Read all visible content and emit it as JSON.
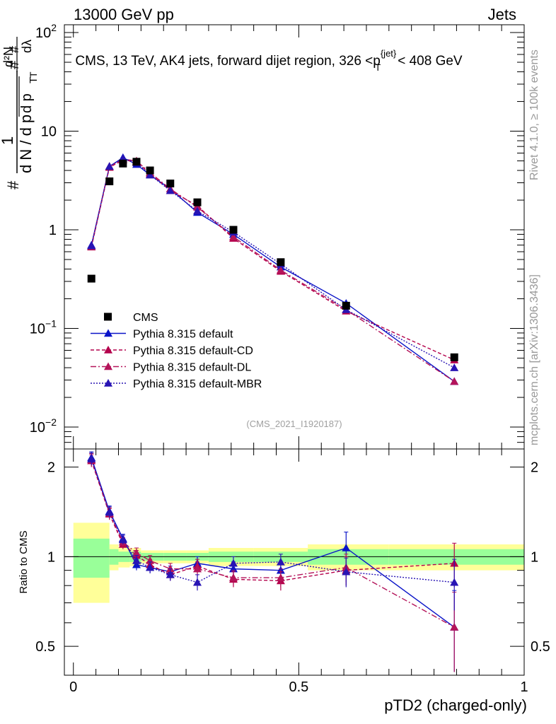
{
  "header": {
    "left": "13000 GeV pp",
    "right": "Jets"
  },
  "side_text": {
    "rivet": "Rivet 4.1.0, ≥ 100k events",
    "mcplots": "mcplots.cern.ch [arXiv:1306.3436]"
  },
  "main": {
    "title": "CMS, 13 TeV, AK4 jets, forward dijet region, 326 <p",
    "title_sup": "{jet}",
    "title_sub": "T",
    "title_end": "< 408 GeV",
    "watermark": "(CMS_2021_I1920187)",
    "ylabel": {
      "hash1": "#",
      "one": "1",
      "dN": "d N / d p",
      "T1": "T",
      "hash2": "#",
      "dp": "d p",
      "T2": "T",
      "hash3": "#",
      "d2N": "d²N",
      "dl": "dλ"
    },
    "yticks": [
      {
        "base": "10",
        "exp": "2",
        "value": 100
      },
      {
        "base": "10",
        "exp": "",
        "value": 10
      },
      {
        "base": "1",
        "exp": "",
        "value": 1
      },
      {
        "base": "10",
        "exp": "−1",
        "value": 0.1
      },
      {
        "base": "10",
        "exp": "−2",
        "value": 0.01
      }
    ]
  },
  "ratio": {
    "ylabel": "Ratio to CMS",
    "yticks": [
      "2",
      "1",
      "0.5"
    ],
    "xticks": [
      "0",
      "0.5",
      "1"
    ],
    "xlabel": "pTD2 (charged-only)"
  },
  "legend": [
    {
      "label": "CMS",
      "color": "#000000",
      "marker": "square"
    },
    {
      "label": "Pythia 8.315 default",
      "color": "#0a14c8",
      "marker": "triangle",
      "dash": ""
    },
    {
      "label": "Pythia 8.315 default-CD",
      "color": "#b4004b",
      "marker": "triangle",
      "dash": "5,3"
    },
    {
      "label": "Pythia 8.315 default-DL",
      "color": "#b4145a",
      "marker": "triangle",
      "dash": "8,3,2,3"
    },
    {
      "label": "Pythia 8.315 default-MBR",
      "color": "#2814b4",
      "marker": "triangle",
      "dash": "2,2"
    }
  ],
  "chart_data": {
    "type": "scatter",
    "main_yscale": "log",
    "main_ylim": [
      0.006,
      120
    ],
    "ratio_ylim": [
      0.4,
      2.3
    ],
    "xlim": [
      -0.02,
      1.0
    ],
    "bin_edges": [
      0,
      0.08,
      0.1,
      0.125,
      0.15,
      0.2,
      0.25,
      0.3,
      0.4,
      0.52,
      0.7,
      1.0
    ],
    "x": [
      0.04,
      0.08,
      0.11,
      0.14,
      0.17,
      0.215,
      0.275,
      0.355,
      0.46,
      0.605,
      0.845
    ],
    "data_values": [
      0.32,
      3.1,
      4.7,
      4.9,
      4.0,
      2.95,
      1.9,
      1.0,
      0.47,
      0.17,
      0.051
    ],
    "band_inner": [
      0.15,
      0.06,
      0.04,
      0.04,
      0.03,
      0.03,
      0.03,
      0.04,
      0.04,
      0.06,
      0.06
    ],
    "band_outer": [
      0.3,
      0.1,
      0.08,
      0.07,
      0.05,
      0.05,
      0.05,
      0.07,
      0.07,
      0.1,
      0.1
    ],
    "series": [
      {
        "name": "Pythia 8.315 default",
        "values": [
          0.7,
          4.4,
          5.4,
          4.6,
          3.6,
          2.6,
          1.5,
          0.9,
          0.42,
          0.18,
          0.029
        ],
        "ratio": [
          2.15,
          1.42,
          1.15,
          0.94,
          0.92,
          0.89,
          0.95,
          0.91,
          0.9,
          1.07,
          0.58
        ],
        "ratio_err": [
          0.1,
          0.06,
          0.04,
          0.04,
          0.04,
          0.04,
          0.05,
          0.05,
          0.06,
          0.14,
          0.19
        ]
      },
      {
        "name": "Pythia 8.315 default-CD",
        "values": [
          0.67,
          4.3,
          5.1,
          4.9,
          3.7,
          2.5,
          1.75,
          0.82,
          0.38,
          0.15,
          0.048
        ],
        "ratio": [
          2.1,
          1.39,
          1.1,
          1.01,
          0.94,
          0.87,
          0.93,
          0.84,
          0.83,
          0.9,
          0.95
        ],
        "ratio_err": [
          0.1,
          0.06,
          0.04,
          0.04,
          0.04,
          0.04,
          0.05,
          0.05,
          0.06,
          0.1,
          0.16
        ]
      },
      {
        "name": "Pythia 8.315 default-DL",
        "values": [
          0.68,
          4.4,
          5.2,
          5.0,
          3.8,
          2.6,
          1.7,
          0.85,
          0.39,
          0.155,
          0.029
        ],
        "ratio": [
          2.12,
          1.4,
          1.12,
          1.03,
          0.97,
          0.91,
          0.91,
          0.85,
          0.85,
          0.92,
          0.58
        ],
        "ratio_err": [
          0.1,
          0.06,
          0.04,
          0.04,
          0.04,
          0.04,
          0.05,
          0.05,
          0.06,
          0.1,
          0.18
        ]
      },
      {
        "name": "Pythia 8.315 default-MBR",
        "values": [
          0.69,
          4.4,
          5.3,
          4.8,
          3.6,
          2.5,
          1.55,
          0.95,
          0.45,
          0.155,
          0.04
        ],
        "ratio": [
          2.13,
          1.41,
          1.14,
          0.97,
          0.92,
          0.87,
          0.82,
          0.95,
          0.96,
          0.89,
          0.82
        ],
        "ratio_err": [
          0.1,
          0.06,
          0.04,
          0.04,
          0.04,
          0.04,
          0.05,
          0.05,
          0.06,
          0.1,
          0.16
        ]
      }
    ]
  }
}
